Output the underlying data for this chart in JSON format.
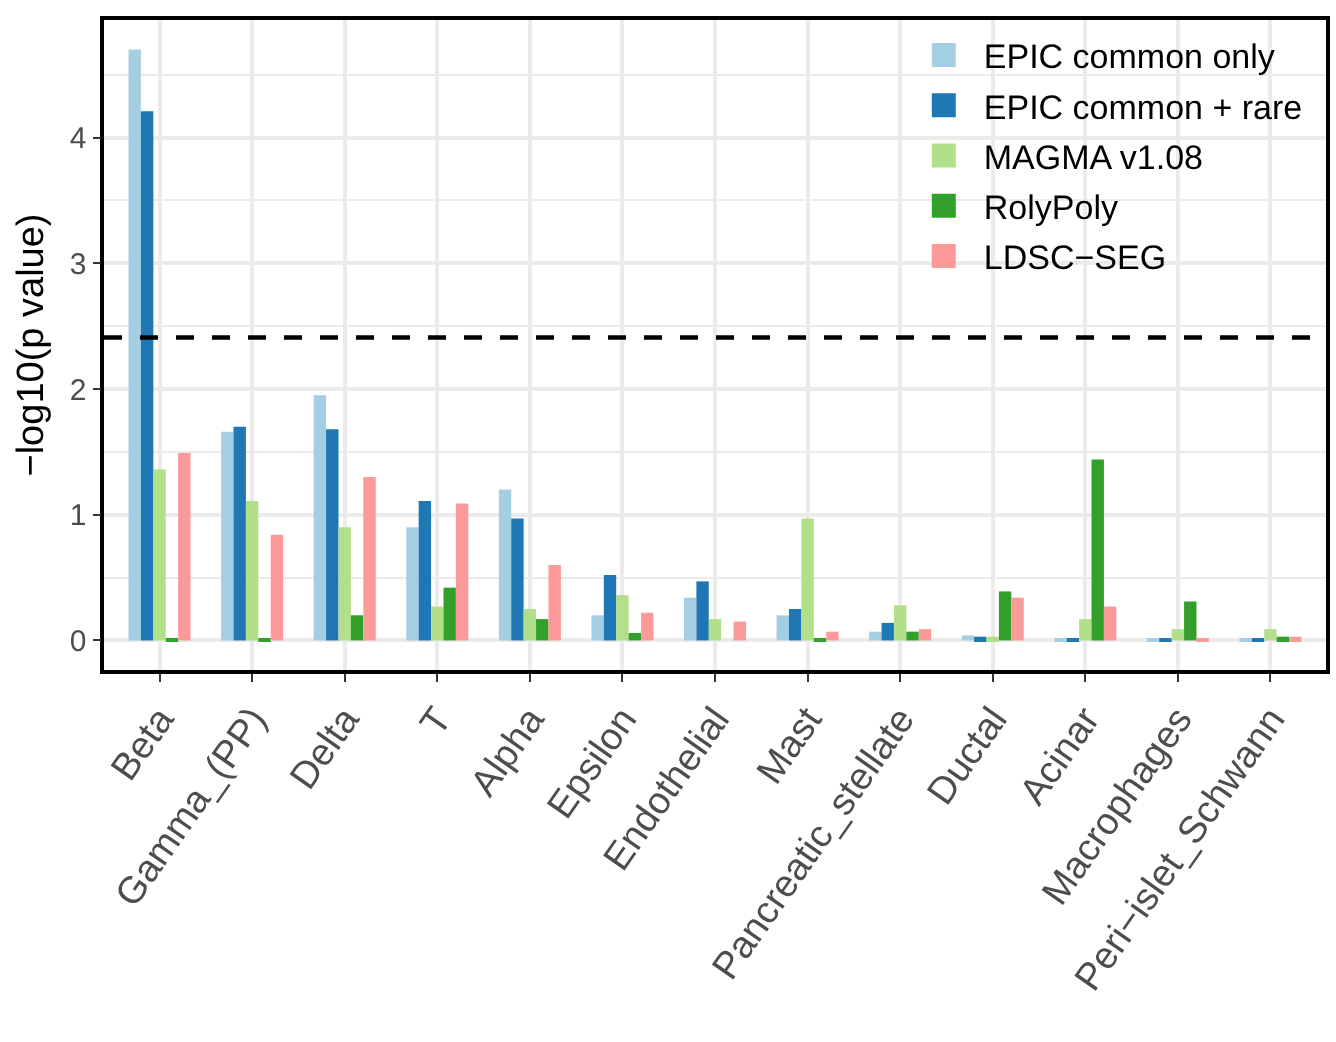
{
  "chart_data": {
    "type": "bar",
    "ylabel": "−log10(p value)",
    "categories": [
      "Beta",
      "Gamma_(PP)",
      "Delta",
      "T",
      "Alpha",
      "Epsilon",
      "Endothelial",
      "Mast",
      "Pancreatic_stellate",
      "Ductal",
      "Acinar",
      "Macrophages",
      "Peri−islet_Schwann"
    ],
    "series": [
      {
        "name": "EPIC common only",
        "color": "#a6cee3",
        "values": [
          4.7,
          1.66,
          1.95,
          0.9,
          1.2,
          0.2,
          0.34,
          0.2,
          0.07,
          0.04,
          0.01,
          0.01,
          0.01
        ]
      },
      {
        "name": "EPIC common + rare",
        "color": "#1f78b4",
        "values": [
          4.21,
          1.7,
          1.68,
          1.11,
          0.97,
          0.52,
          0.47,
          0.25,
          0.14,
          0.03,
          0.01,
          0.01,
          0.01
        ]
      },
      {
        "name": "MAGMA v1.08",
        "color": "#b2df8a",
        "values": [
          1.36,
          1.11,
          0.9,
          0.27,
          0.25,
          0.36,
          0.17,
          0.97,
          0.28,
          0.03,
          0.17,
          0.09,
          0.09
        ]
      },
      {
        "name": "RolyPoly",
        "color": "#33a02c",
        "values": [
          0.01,
          0.01,
          0.2,
          0.42,
          0.17,
          0.06,
          0,
          0.01,
          0.07,
          0.39,
          1.44,
          0.31,
          0.03
        ]
      },
      {
        "name": "LDSC−SEG",
        "color": "#fb9a99",
        "values": [
          1.49,
          0.84,
          1.3,
          1.09,
          0.6,
          0.22,
          0.15,
          0.07,
          0.09,
          0.34,
          0.27,
          0.01,
          0.03
        ]
      }
    ],
    "ylim": [
      -0.235,
      4.935
    ],
    "yticks": [
      0,
      1,
      2,
      3,
      4
    ],
    "grid": true,
    "legend": "top right",
    "ref_lines": [
      {
        "axis": "y",
        "value": 2.41,
        "color": "#000000",
        "line_style": "dashed"
      }
    ]
  }
}
